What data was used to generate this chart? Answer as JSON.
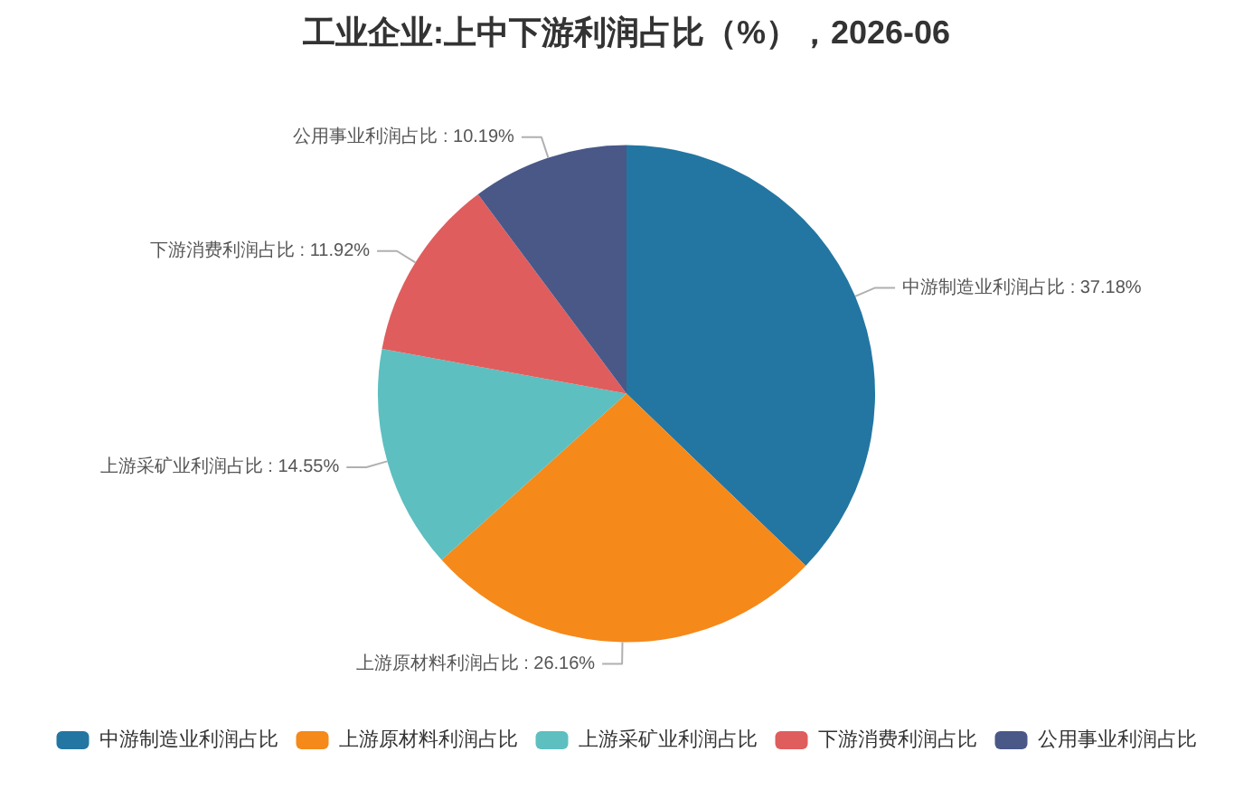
{
  "chart_data": {
    "type": "pie",
    "title": "工业企业:上中下游利润占比（%），2026-06",
    "categories": [
      "中游制造业利润占比",
      "上游原材料利润占比",
      "上游采矿业利润占比",
      "下游消费利润占比",
      "公用事业利润占比"
    ],
    "values": [
      37.18,
      26.16,
      14.55,
      11.92,
      10.19
    ],
    "colors": [
      "#2376a2",
      "#f5891a",
      "#5dbfc0",
      "#e05d5d",
      "#4a5888"
    ],
    "value_labels": [
      "中游制造业利润占比 : 37.18%",
      "上游原材料利润占比 : 26.16%",
      "上游采矿业利润占比 : 14.55%",
      "下游消费利润占比 : 11.92%",
      "公用事业利润占比 : 10.19%"
    ],
    "legend": "bottom"
  }
}
